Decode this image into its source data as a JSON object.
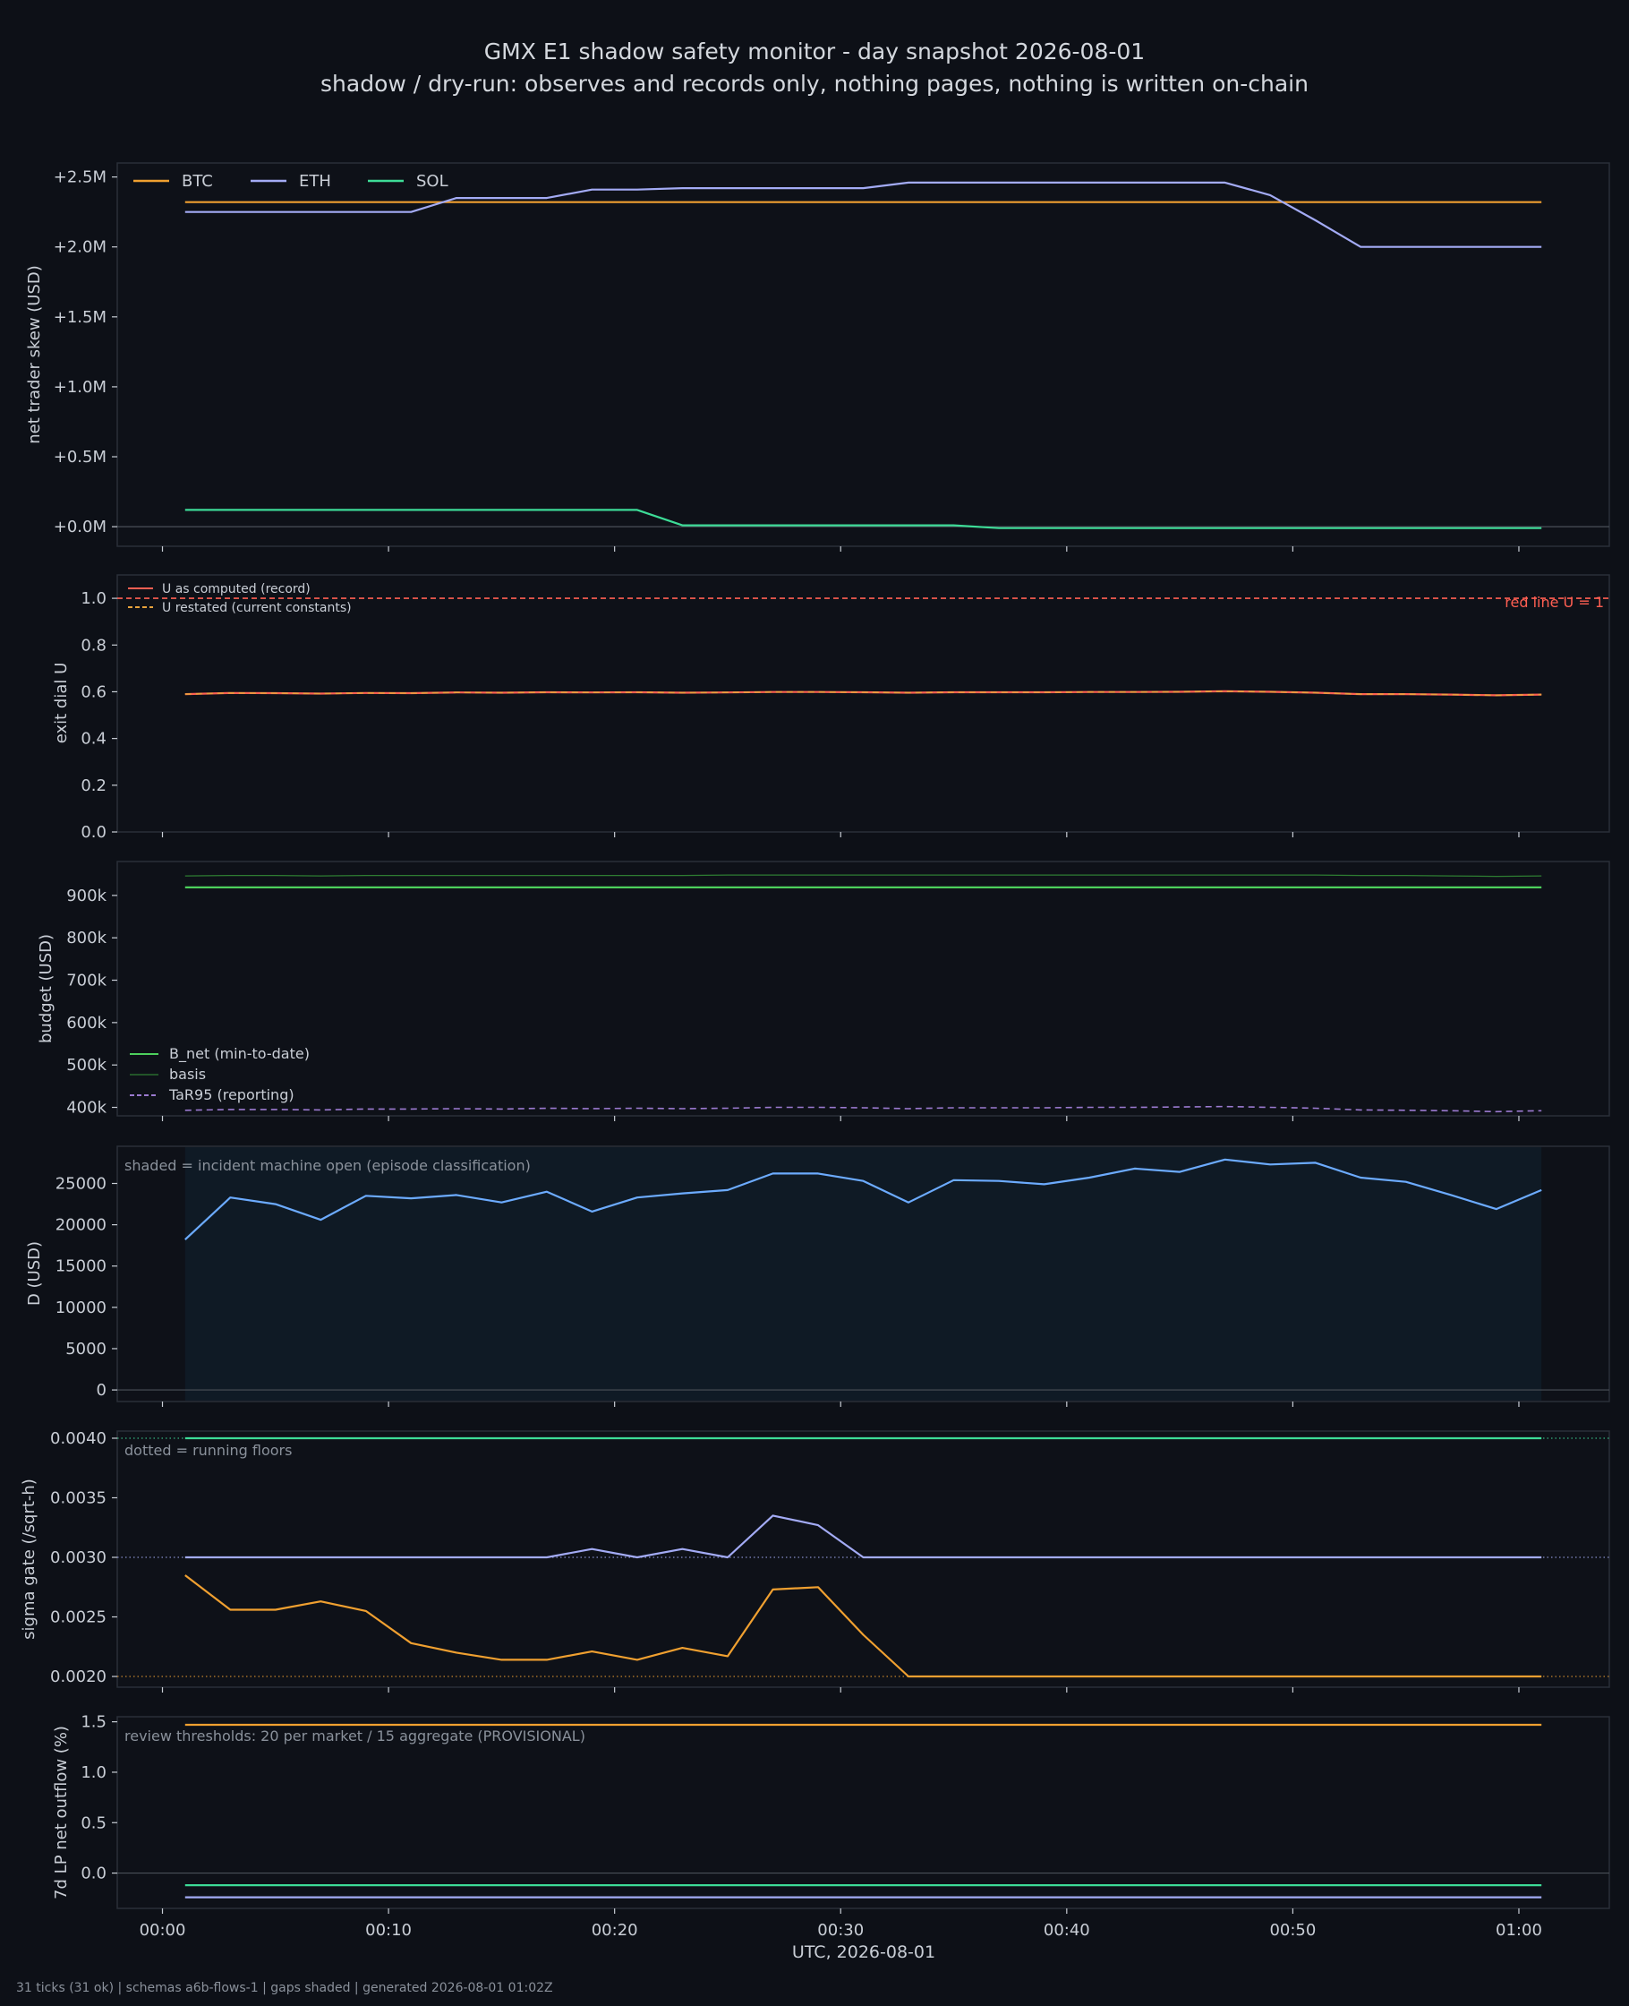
{
  "figure": {
    "title": "GMX E1 shadow safety monitor - day snapshot 2026-08-01",
    "subtitle": "shadow / dry-run: observes and records only, nothing pages, nothing is written on-chain",
    "footer": "31 ticks (31 ok) | schemas a6b-flows-1 | gaps shaded | generated 2026-08-01 01:02Z",
    "xlabel": "UTC, 2026-08-01",
    "x_ticks": [
      "00:00",
      "00:10",
      "00:20",
      "00:30",
      "00:40",
      "00:50",
      "01:00"
    ],
    "x_range_min": [
      -2,
      64
    ],
    "colors": {
      "background": "#0d1017",
      "panel": "#0e1118",
      "frame": "#2a2f38",
      "text": "#c9ced6",
      "muted": "#8a919b",
      "btc": "#f0a030",
      "eth": "#a3abf5",
      "sol": "#3ddc97",
      "u_record": "#ff5f52",
      "u_restated": "#e8a33c",
      "redline": "#ff5f52",
      "bnet": "#4cd05c",
      "basis": "#2e7d32",
      "tar": "#9b7ad0",
      "d": "#6cabff",
      "shade": "#0f1a25"
    }
  },
  "chart_data": [
    {
      "type": "line",
      "id": "skew",
      "ylabel": "net trader skew (USD)",
      "ylim": [
        -0.14,
        2.6
      ],
      "yticks": [
        0,
        0.5,
        1.0,
        1.5,
        2.0,
        2.5
      ],
      "ytick_labels": [
        "+0.0M",
        "+0.5M",
        "+1.0M",
        "+1.5M",
        "+2.0M",
        "+2.5M"
      ],
      "zero_line": true,
      "legend": "top-left-horizontal",
      "x": [
        1,
        3,
        5,
        7,
        9,
        11,
        13,
        15,
        17,
        19,
        21,
        23,
        25,
        27,
        29,
        31,
        33,
        35,
        37,
        39,
        41,
        43,
        45,
        47,
        49,
        51,
        53,
        55,
        57,
        59,
        61
      ],
      "series": [
        {
          "name": "BTC",
          "color": "#f0a030",
          "values": [
            2.32,
            2.32,
            2.32,
            2.32,
            2.32,
            2.32,
            2.32,
            2.32,
            2.32,
            2.32,
            2.32,
            2.32,
            2.32,
            2.32,
            2.32,
            2.32,
            2.32,
            2.32,
            2.32,
            2.32,
            2.32,
            2.32,
            2.32,
            2.32,
            2.32,
            2.32,
            2.32,
            2.32,
            2.32,
            2.32,
            2.32
          ]
        },
        {
          "name": "ETH",
          "color": "#a3abf5",
          "values": [
            2.25,
            2.25,
            2.25,
            2.25,
            2.25,
            2.25,
            2.35,
            2.35,
            2.35,
            2.41,
            2.41,
            2.42,
            2.42,
            2.42,
            2.42,
            2.42,
            2.46,
            2.46,
            2.46,
            2.46,
            2.46,
            2.46,
            2.46,
            2.46,
            2.37,
            2.19,
            2.0,
            2.0,
            2.0,
            2.0,
            2.0
          ]
        },
        {
          "name": "SOL",
          "color": "#3ddc97",
          "values": [
            0.12,
            0.12,
            0.12,
            0.12,
            0.12,
            0.12,
            0.12,
            0.12,
            0.12,
            0.12,
            0.12,
            0.01,
            0.01,
            0.01,
            0.01,
            0.01,
            0.01,
            0.01,
            -0.01,
            -0.01,
            -0.01,
            -0.01,
            -0.01,
            -0.01,
            -0.01,
            -0.01,
            -0.01,
            -0.01,
            -0.01,
            -0.01,
            -0.01
          ]
        }
      ]
    },
    {
      "type": "line",
      "id": "exit",
      "ylabel": "exit dial U",
      "ylim": [
        0,
        1.1
      ],
      "yticks": [
        0,
        0.2,
        0.4,
        0.6,
        0.8,
        1.0
      ],
      "ytick_labels": [
        "0.0",
        "0.2",
        "0.4",
        "0.6",
        "0.8",
        "1.0"
      ],
      "legend": "top-left",
      "hline": {
        "value": 1.0,
        "label": "red line U = 1",
        "color": "#ff5f52"
      },
      "x": [
        1,
        3,
        5,
        7,
        9,
        11,
        13,
        15,
        17,
        19,
        21,
        23,
        25,
        27,
        29,
        31,
        33,
        35,
        37,
        39,
        41,
        43,
        45,
        47,
        49,
        51,
        53,
        55,
        57,
        59,
        61
      ],
      "series": [
        {
          "name": "U as computed (record)",
          "color": "#ff5f52",
          "style": "solid",
          "values": [
            0.59,
            0.595,
            0.594,
            0.592,
            0.595,
            0.594,
            0.597,
            0.596,
            0.598,
            0.597,
            0.598,
            0.596,
            0.597,
            0.599,
            0.599,
            0.598,
            0.596,
            0.598,
            0.598,
            0.598,
            0.599,
            0.599,
            0.6,
            0.602,
            0.6,
            0.596,
            0.59,
            0.59,
            0.588,
            0.585,
            0.588
          ]
        },
        {
          "name": "U restated (current constants)",
          "color": "#e8a33c",
          "style": "dashed",
          "values": [
            0.59,
            0.595,
            0.594,
            0.592,
            0.595,
            0.594,
            0.597,
            0.596,
            0.598,
            0.597,
            0.598,
            0.596,
            0.597,
            0.599,
            0.599,
            0.598,
            0.596,
            0.598,
            0.598,
            0.598,
            0.599,
            0.599,
            0.6,
            0.602,
            0.6,
            0.596,
            0.59,
            0.59,
            0.588,
            0.585,
            0.588
          ]
        }
      ]
    },
    {
      "type": "line",
      "id": "budget",
      "ylabel": "budget (USD)",
      "ylim": [
        380000,
        980000
      ],
      "yticks": [
        400000,
        500000,
        600000,
        700000,
        800000,
        900000
      ],
      "ytick_labels": [
        "400k",
        "500k",
        "600k",
        "700k",
        "800k",
        "900k"
      ],
      "legend": "bottom-left",
      "x": [
        1,
        3,
        5,
        7,
        9,
        11,
        13,
        15,
        17,
        19,
        21,
        23,
        25,
        27,
        29,
        31,
        33,
        35,
        37,
        39,
        41,
        43,
        45,
        47,
        49,
        51,
        53,
        55,
        57,
        59,
        61
      ],
      "series": [
        {
          "name": "B_net (min-to-date)",
          "color": "#4cd05c",
          "style": "solid",
          "values": [
            919000,
            919000,
            919000,
            919000,
            919000,
            919000,
            919000,
            919000,
            919000,
            919000,
            919000,
            919000,
            919000,
            919000,
            919000,
            919000,
            919000,
            919000,
            919000,
            919000,
            919000,
            919000,
            919000,
            919000,
            919000,
            919000,
            919000,
            919000,
            919000,
            919000,
            919000
          ]
        },
        {
          "name": "basis",
          "color": "#2e7d32",
          "style": "thin",
          "values": [
            946000,
            947000,
            947000,
            946000,
            947000,
            947000,
            947000,
            947000,
            947000,
            947000,
            947000,
            947000,
            948000,
            948000,
            948000,
            948000,
            948000,
            948000,
            948000,
            948000,
            948000,
            948000,
            948000,
            948000,
            948000,
            948000,
            947000,
            947000,
            946000,
            945000,
            946000
          ]
        },
        {
          "name": "TaR95 (reporting)",
          "color": "#9b7ad0",
          "style": "dashed",
          "values": [
            393000,
            395000,
            395000,
            394000,
            396000,
            396000,
            397000,
            396000,
            398000,
            397000,
            398000,
            397000,
            398000,
            400000,
            400000,
            399000,
            397000,
            399000,
            399000,
            399000,
            400000,
            400000,
            401000,
            402000,
            400000,
            398000,
            394000,
            393000,
            392000,
            390000,
            392000
          ]
        }
      ]
    },
    {
      "type": "line",
      "id": "d",
      "ylabel": "D (USD)",
      "ylim": [
        -1400,
        29500
      ],
      "yticks": [
        0,
        5000,
        10000,
        15000,
        20000,
        25000
      ],
      "ytick_labels": [
        "0",
        "5000",
        "10000",
        "15000",
        "20000",
        "25000"
      ],
      "zero_line": true,
      "annotation": "shaded = incident machine open (episode classification)",
      "shade": [
        1,
        61
      ],
      "x": [
        1,
        3,
        5,
        7,
        9,
        11,
        13,
        15,
        17,
        19,
        21,
        23,
        25,
        27,
        29,
        31,
        33,
        35,
        37,
        39,
        41,
        43,
        45,
        47,
        49,
        51,
        53,
        55,
        57,
        59,
        61
      ],
      "series": [
        {
          "name": "D",
          "color": "#6cabff",
          "values": [
            18200,
            23300,
            22500,
            20600,
            23500,
            23200,
            23600,
            22700,
            24000,
            21600,
            23300,
            23800,
            24200,
            26200,
            26200,
            25300,
            22700,
            25400,
            25300,
            24900,
            25700,
            26800,
            26400,
            27900,
            27300,
            27500,
            25700,
            25200,
            23600,
            21900,
            24200
          ]
        }
      ]
    },
    {
      "type": "line",
      "id": "sigma",
      "ylabel": "sigma gate (/sqrt-h)",
      "ylim": [
        0.00191,
        0.00406
      ],
      "yticks": [
        0.002,
        0.0025,
        0.003,
        0.0035,
        0.004
      ],
      "ytick_labels": [
        "0.0020",
        "0.0025",
        "0.0030",
        "0.0035",
        "0.0040"
      ],
      "annotation": "dotted = running floors",
      "floors": [
        {
          "value": 0.004,
          "color": "#3ddc97"
        },
        {
          "value": 0.003,
          "color": "#a3abf5"
        },
        {
          "value": 0.002,
          "color": "#f0a030"
        }
      ],
      "x": [
        1,
        3,
        5,
        7,
        9,
        11,
        13,
        15,
        17,
        19,
        21,
        23,
        25,
        27,
        29,
        31,
        33,
        35,
        37,
        39,
        41,
        43,
        45,
        47,
        49,
        51,
        53,
        55,
        57,
        59,
        61
      ],
      "series": [
        {
          "name": "SOL",
          "color": "#3ddc97",
          "values": [
            0.004,
            0.004,
            0.004,
            0.004,
            0.004,
            0.004,
            0.004,
            0.004,
            0.004,
            0.004,
            0.004,
            0.004,
            0.004,
            0.004,
            0.004,
            0.004,
            0.004,
            0.004,
            0.004,
            0.004,
            0.004,
            0.004,
            0.004,
            0.004,
            0.004,
            0.004,
            0.004,
            0.004,
            0.004,
            0.004,
            0.004
          ]
        },
        {
          "name": "ETH",
          "color": "#a3abf5",
          "values": [
            0.003,
            0.003,
            0.003,
            0.003,
            0.003,
            0.003,
            0.003,
            0.003,
            0.003,
            0.00307,
            0.003,
            0.00307,
            0.003,
            0.00335,
            0.00327,
            0.003,
            0.003,
            0.003,
            0.003,
            0.003,
            0.003,
            0.003,
            0.003,
            0.003,
            0.003,
            0.003,
            0.003,
            0.003,
            0.003,
            0.003,
            0.003
          ]
        },
        {
          "name": "BTC",
          "color": "#f0a030",
          "values": [
            0.00285,
            0.00256,
            0.00256,
            0.00263,
            0.00255,
            0.00228,
            0.0022,
            0.00214,
            0.00214,
            0.00221,
            0.00214,
            0.00224,
            0.00217,
            0.00273,
            0.00275,
            0.00235,
            0.002,
            0.002,
            0.002,
            0.002,
            0.002,
            0.002,
            0.002,
            0.002,
            0.002,
            0.002,
            0.002,
            0.002,
            0.002,
            0.002,
            0.002
          ]
        }
      ]
    },
    {
      "type": "line",
      "id": "lp",
      "ylabel": "7d LP net outflow (%)",
      "ylim": [
        -0.35,
        1.55
      ],
      "yticks": [
        0,
        0.5,
        1.0,
        1.5
      ],
      "ytick_labels": [
        "0.0",
        "0.5",
        "1.0",
        "1.5"
      ],
      "zero_line": true,
      "annotation": "review thresholds: 20 per market / 15 aggregate (PROVISIONAL)",
      "x": [
        1,
        61
      ],
      "series": [
        {
          "name": "BTC",
          "color": "#f0a030",
          "values": [
            1.47,
            1.47
          ]
        },
        {
          "name": "SOL",
          "color": "#3ddc97",
          "values": [
            -0.12,
            -0.12
          ]
        },
        {
          "name": "ETH",
          "color": "#a3abf5",
          "values": [
            -0.24,
            -0.24
          ]
        }
      ]
    }
  ]
}
